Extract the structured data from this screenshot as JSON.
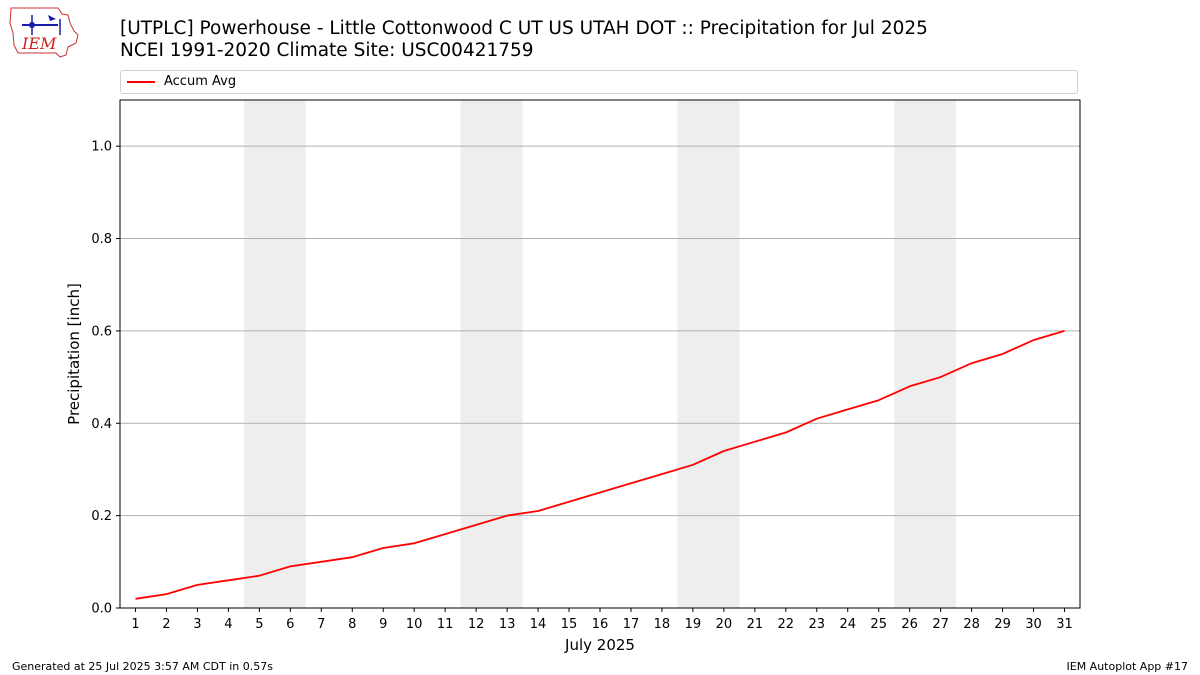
{
  "header": {
    "title_line1": "[UTPLC] Powerhouse - Little Cottonwood C UT US UTAH DOT :: Precipitation for Jul 2025",
    "title_line2": "NCEI 1991-2020 Climate Site: USC00421759",
    "logo_text": "IEM",
    "logo_icon": "iem-logo-icon"
  },
  "footer": {
    "left": "Generated at 25 Jul 2025 3:57 AM CDT in 0.57s",
    "right": "IEM Autoplot App #17"
  },
  "colors": {
    "series": "#ff0000",
    "weekend_band": "#eeeeee",
    "grid": "#b0b0b0"
  },
  "chart_data": {
    "type": "line",
    "xlabel": "July 2025",
    "ylabel": "Precipitation [inch]",
    "xlim": [
      0.5,
      31.5
    ],
    "ylim": [
      0.0,
      1.1
    ],
    "x_ticks": [
      1,
      2,
      3,
      4,
      5,
      6,
      7,
      8,
      9,
      10,
      11,
      12,
      13,
      14,
      15,
      16,
      17,
      18,
      19,
      20,
      21,
      22,
      23,
      24,
      25,
      26,
      27,
      28,
      29,
      30,
      31
    ],
    "y_ticks": [
      0.0,
      0.2,
      0.4,
      0.6,
      0.8,
      1.0
    ],
    "y_tick_labels": [
      "0.0",
      "0.2",
      "0.4",
      "0.6",
      "0.8",
      "1.0"
    ],
    "grid": "horizontal",
    "legend": "top",
    "weekend_bands": [
      [
        5,
        6
      ],
      [
        12,
        13
      ],
      [
        19,
        20
      ],
      [
        26,
        27
      ]
    ],
    "series": [
      {
        "name": "Accum Avg",
        "x": [
          1,
          2,
          3,
          4,
          5,
          6,
          7,
          8,
          9,
          10,
          11,
          12,
          13,
          14,
          15,
          16,
          17,
          18,
          19,
          20,
          21,
          22,
          23,
          24,
          25,
          26,
          27,
          28,
          29,
          30,
          31
        ],
        "values": [
          0.02,
          0.03,
          0.05,
          0.06,
          0.07,
          0.09,
          0.1,
          0.11,
          0.13,
          0.14,
          0.16,
          0.18,
          0.2,
          0.21,
          0.23,
          0.25,
          0.27,
          0.29,
          0.31,
          0.34,
          0.36,
          0.38,
          0.41,
          0.43,
          0.45,
          0.48,
          0.5,
          0.53,
          0.55,
          0.58,
          0.6
        ]
      }
    ]
  }
}
